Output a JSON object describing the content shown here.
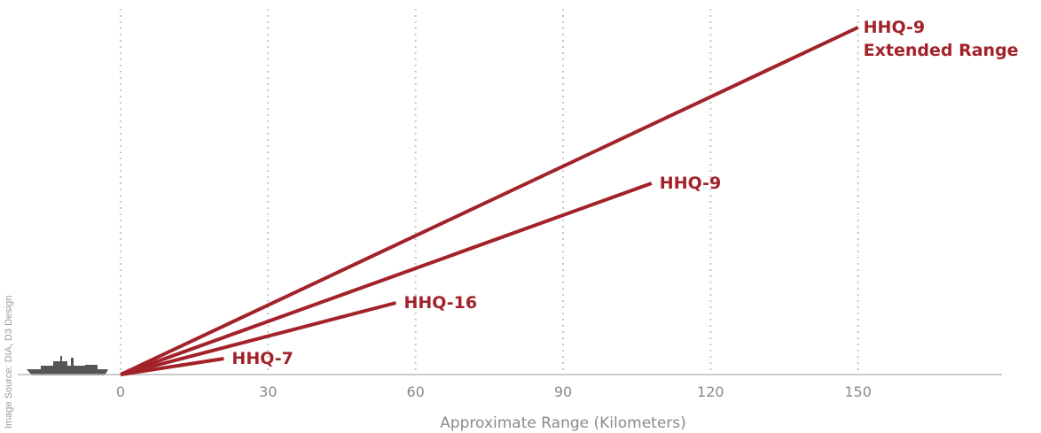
{
  "chart_data": {
    "type": "range-lines",
    "x_label": "Approximate Range (Kilometers)",
    "source": "Image Source: DIA, D3 Design",
    "categories": [
      "HHQ-7",
      "HHQ-16",
      "HHQ-9",
      "HHQ-9\nExtended Range"
    ],
    "values": [
      21,
      56,
      108,
      150
    ],
    "color": "#a3222a",
    "xlim": [
      0,
      180
    ],
    "xticks": [
      0,
      30,
      60,
      90,
      120,
      150
    ],
    "grid": true
  }
}
